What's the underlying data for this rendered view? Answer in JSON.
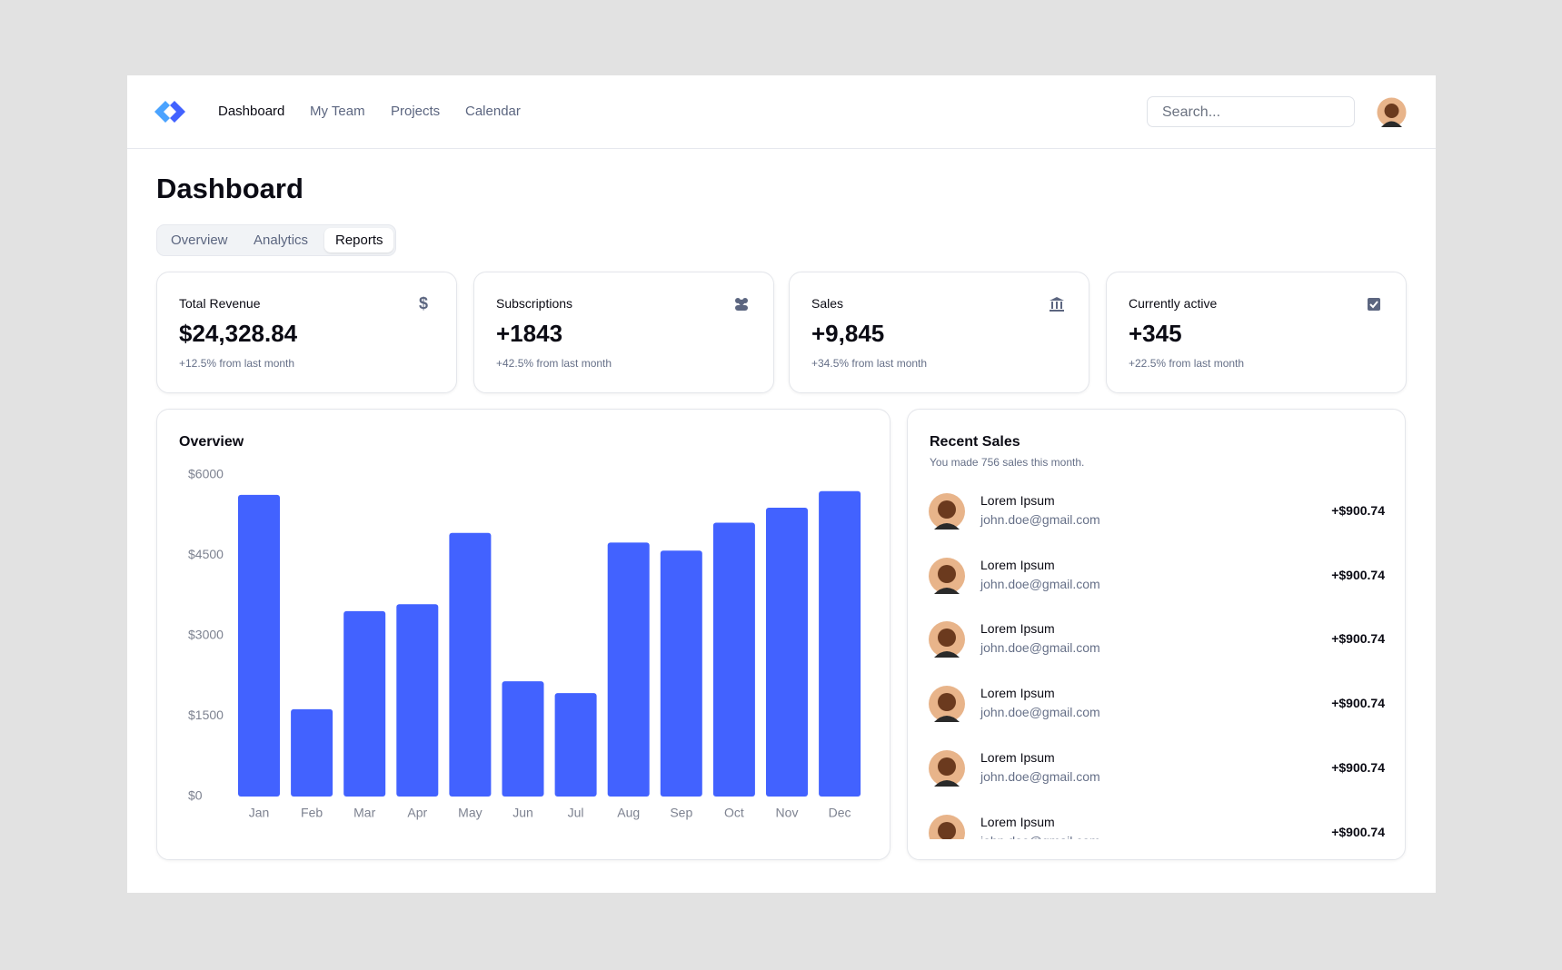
{
  "nav": {
    "items": [
      "Dashboard",
      "My Team",
      "Projects",
      "Calendar"
    ],
    "search_placeholder": "Search..."
  },
  "header": {
    "title": "Dashboard"
  },
  "tabs": [
    "Overview",
    "Analytics",
    "Reports"
  ],
  "cards": [
    {
      "label": "Total Revenue",
      "value": "$24,328.84",
      "change": "+12.5% from last month"
    },
    {
      "label": "Subscriptions",
      "value": "+1843",
      "change": "+42.5% from last month"
    },
    {
      "label": "Sales",
      "value": "+9,845",
      "change": "+34.5% from last month"
    },
    {
      "label": "Currently active",
      "value": "+345",
      "change": "+22.5% from last month"
    }
  ],
  "chart_data": {
    "type": "bar",
    "title": "Overview",
    "categories": [
      "Jan",
      "Feb",
      "Mar",
      "Apr",
      "May",
      "Jun",
      "Jul",
      "Aug",
      "Sep",
      "Oct",
      "Nov",
      "Dec"
    ],
    "values": [
      5630,
      1630,
      3460,
      3590,
      4920,
      2150,
      1930,
      4740,
      4590,
      5110,
      5390,
      5700
    ],
    "color": "#4262ff",
    "ylim": [
      0,
      6000
    ],
    "yticks": [
      {
        "value": 0,
        "label": "$0"
      },
      {
        "value": 1500,
        "label": "$1500"
      },
      {
        "value": 3000,
        "label": "$3000"
      },
      {
        "value": 4500,
        "label": "$4500"
      },
      {
        "value": 6000,
        "label": "$6000"
      }
    ],
    "grid": false
  },
  "recent_sales": {
    "title": "Recent Sales",
    "subtitle": "You made 756 sales this month.",
    "items": [
      {
        "name": "Lorem Ipsum",
        "email": "john.doe@gmail.com",
        "amount": "+$900.74"
      },
      {
        "name": "Lorem Ipsum",
        "email": "john.doe@gmail.com",
        "amount": "+$900.74"
      },
      {
        "name": "Lorem Ipsum",
        "email": "john.doe@gmail.com",
        "amount": "+$900.74"
      },
      {
        "name": "Lorem Ipsum",
        "email": "john.doe@gmail.com",
        "amount": "+$900.74"
      },
      {
        "name": "Lorem Ipsum",
        "email": "john.doe@gmail.com",
        "amount": "+$900.74"
      },
      {
        "name": "Lorem Ipsum",
        "email": "john.doe@gmail.com",
        "amount": "+$900.74"
      }
    ]
  }
}
